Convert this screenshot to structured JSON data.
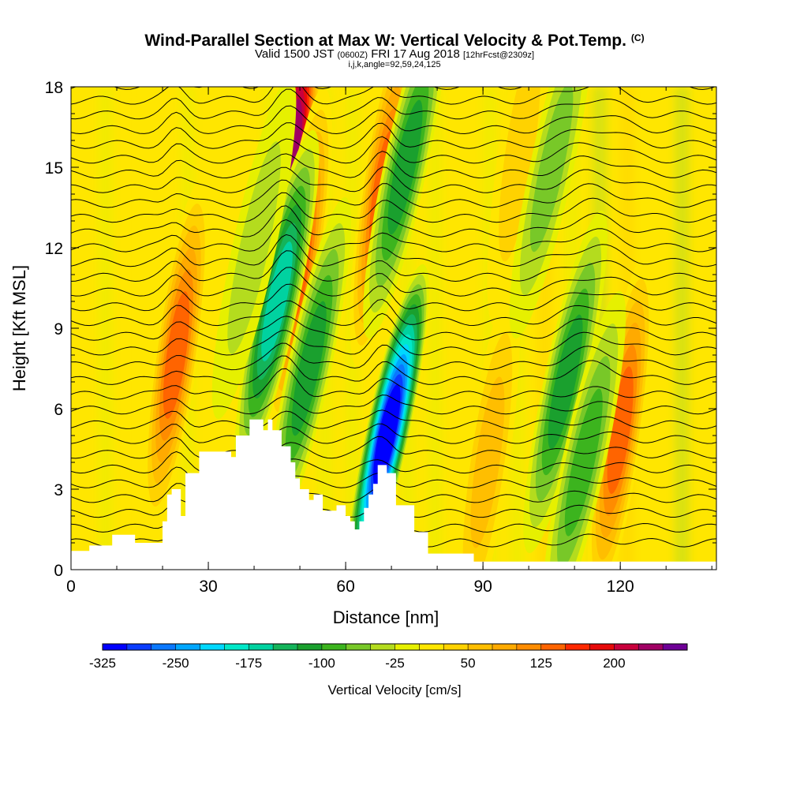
{
  "header": {
    "title": "Wind-Parallel Section at Max W: Vertical Velocity & Pot.Temp.",
    "title_mark": "(C)",
    "valid_prefix": "Valid 1500 JST",
    "valid_utc": "(0600Z)",
    "valid_date": "FRI 17 Aug 2018",
    "forecast_info": "[12hrFcst@2309z]",
    "index_info": "i,j,k,angle=92,59,24,125"
  },
  "chart_data": {
    "type": "heatmap",
    "xlabel": "Distance [nm]",
    "ylabel": "Height [Kft MSL]",
    "xlim": [
      0,
      141
    ],
    "ylim": [
      0,
      18
    ],
    "x_ticks": [
      "0",
      "30",
      "60",
      "90",
      "120"
    ],
    "y_ticks": [
      "0",
      "3",
      "6",
      "9",
      "12",
      "15",
      "18"
    ],
    "colorbar": {
      "label": "Vertical Velocity [cm/s]",
      "tick_labels": [
        "-325",
        "-250",
        "-175",
        "-100",
        "-25",
        "50",
        "125",
        "200"
      ],
      "levels": [
        -325,
        -300,
        -275,
        -250,
        -225,
        -200,
        -175,
        -150,
        -125,
        -100,
        -75,
        -50,
        -25,
        0,
        25,
        50,
        75,
        100,
        125,
        150,
        175,
        200,
        225,
        250
      ],
      "colors": [
        "#0000ff",
        "#0a3cff",
        "#0a78ff",
        "#00a6ff",
        "#00d8ff",
        "#00e8c8",
        "#00d2a0",
        "#14b45a",
        "#1aa02e",
        "#3cb41e",
        "#78c828",
        "#b4dc1e",
        "#e6f000",
        "#ffe600",
        "#ffd200",
        "#ffbe00",
        "#ffaa00",
        "#ff8c00",
        "#ff6400",
        "#ff2800",
        "#e60a0a",
        "#c8003c",
        "#a00064",
        "#6e0096"
      ]
    },
    "terrain_profile_kft": [
      [
        0,
        0.7
      ],
      [
        4,
        0.7
      ],
      [
        4,
        0.9
      ],
      [
        9,
        0.9
      ],
      [
        9,
        1.3
      ],
      [
        14,
        1.3
      ],
      [
        14,
        1.0
      ],
      [
        20,
        1.0
      ],
      [
        20,
        1.8
      ],
      [
        21,
        1.8
      ],
      [
        21,
        2.8
      ],
      [
        22,
        2.8
      ],
      [
        22,
        3.0
      ],
      [
        24,
        3.0
      ],
      [
        24,
        2.0
      ],
      [
        25,
        2.0
      ],
      [
        25,
        3.6
      ],
      [
        28,
        3.6
      ],
      [
        28,
        4.4
      ],
      [
        35,
        4.4
      ],
      [
        35,
        4.2
      ],
      [
        36,
        4.2
      ],
      [
        36,
        5.0
      ],
      [
        39,
        5.0
      ],
      [
        39,
        5.6
      ],
      [
        42,
        5.6
      ],
      [
        42,
        5.2
      ],
      [
        43,
        5.2
      ],
      [
        43,
        5.6
      ],
      [
        44,
        5.6
      ],
      [
        44,
        5.2
      ],
      [
        46,
        5.2
      ],
      [
        46,
        4.6
      ],
      [
        48,
        4.6
      ],
      [
        48,
        4.0
      ],
      [
        49,
        4.0
      ],
      [
        49,
        3.4
      ],
      [
        50,
        3.4
      ],
      [
        50,
        3.0
      ],
      [
        52,
        3.0
      ],
      [
        52,
        2.6
      ],
      [
        53,
        2.6
      ],
      [
        53,
        2.8
      ],
      [
        55,
        2.8
      ],
      [
        55,
        2.2
      ],
      [
        58,
        2.2
      ],
      [
        58,
        2.4
      ],
      [
        60,
        2.4
      ],
      [
        60,
        2.0
      ],
      [
        61,
        2.0
      ],
      [
        61,
        1.8
      ],
      [
        62,
        1.8
      ],
      [
        62,
        1.5
      ],
      [
        63,
        1.5
      ],
      [
        63,
        1.8
      ],
      [
        64,
        1.8
      ],
      [
        64,
        2.3
      ],
      [
        65,
        2.3
      ],
      [
        65,
        2.8
      ],
      [
        66,
        2.8
      ],
      [
        66,
        3.2
      ],
      [
        67,
        3.2
      ],
      [
        67,
        3.9
      ],
      [
        69,
        3.9
      ],
      [
        69,
        3.6
      ],
      [
        71,
        3.6
      ],
      [
        71,
        2.4
      ],
      [
        75,
        2.4
      ],
      [
        75,
        1.4
      ],
      [
        78,
        1.4
      ],
      [
        78,
        0.6
      ],
      [
        88,
        0.6
      ],
      [
        88,
        0.3
      ],
      [
        141,
        0.3
      ]
    ],
    "updrafts_cm_s": [
      {
        "x_nm": 48,
        "z_kft": 15.5,
        "w": 250
      },
      {
        "x_nm": 50,
        "z_kft": 11.5,
        "w": 150
      },
      {
        "x_nm": 68,
        "z_kft": 14.0,
        "w": 150
      },
      {
        "x_nm": 23,
        "z_kft": 8.0,
        "w": 150
      },
      {
        "x_nm": 120,
        "z_kft": 5.2,
        "w": 150
      },
      {
        "x_nm": 91,
        "z_kft": 4.0,
        "w": 75
      },
      {
        "x_nm": 104,
        "z_kft": 17.0,
        "w": 75
      },
      {
        "x_nm": 98,
        "z_kft": 15.5,
        "w": 60
      }
    ],
    "downdrafts_cm_s": [
      {
        "x_nm": 45,
        "z_kft": 10.0,
        "w": -175
      },
      {
        "x_nm": 52,
        "z_kft": 7.5,
        "w": -125
      },
      {
        "x_nm": 69,
        "z_kft": 5.0,
        "w": -325
      },
      {
        "x_nm": 73,
        "z_kft": 15.0,
        "w": -125
      },
      {
        "x_nm": 108,
        "z_kft": 7.0,
        "w": -125
      },
      {
        "x_nm": 112,
        "z_kft": 4.0,
        "w": -100
      },
      {
        "x_nm": 105,
        "z_kft": 15.0,
        "w": -75
      },
      {
        "x_nm": 40,
        "z_kft": 12.0,
        "w": -50
      }
    ],
    "contours": "potential temperature isentropes (C), black lines"
  }
}
